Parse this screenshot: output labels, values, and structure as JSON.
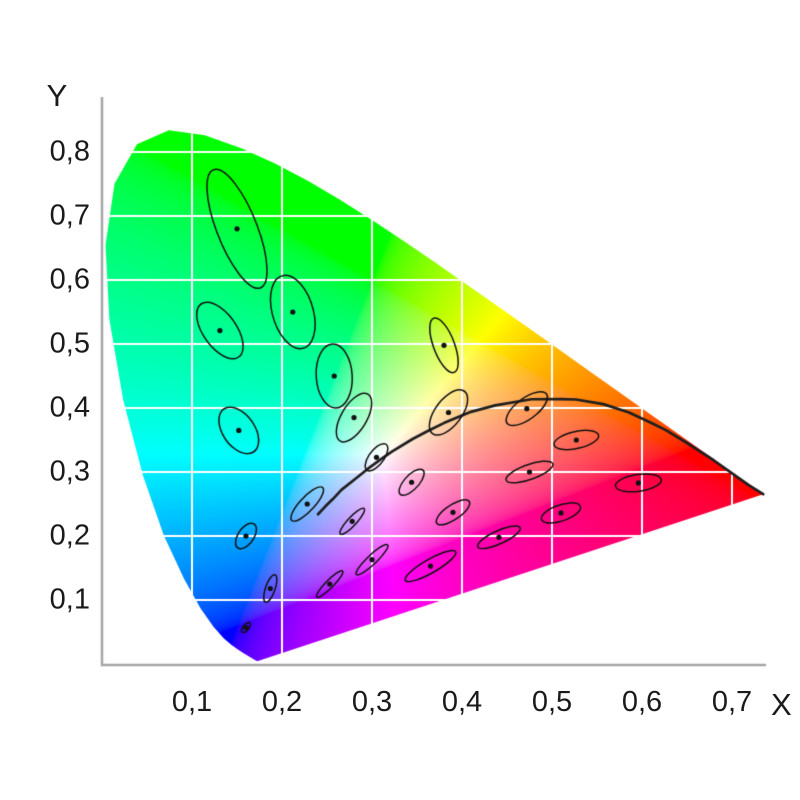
{
  "figure": {
    "background": "#ffffff"
  },
  "axes": {
    "x_title": "X",
    "y_title": "Y",
    "x_tick_labels": [
      "0,1",
      "0,2",
      "0,3",
      "0,4",
      "0,5",
      "0,6",
      "0,7"
    ],
    "x_tick_values": [
      0.1,
      0.2,
      0.3,
      0.4,
      0.5,
      0.6,
      0.7
    ],
    "y_tick_labels": [
      "0,1",
      "0,2",
      "0,3",
      "0,4",
      "0,5",
      "0,6",
      "0,7",
      "0,8"
    ],
    "y_tick_values": [
      0.1,
      0.2,
      0.3,
      0.4,
      0.5,
      0.6,
      0.7,
      0.8
    ],
    "axis_color": "#a6a6a6",
    "text_color": "#1a1a1a"
  },
  "chart_data": {
    "type": "scatter",
    "subtype": "cie-1931-chromaticity-diagram-with-macadam-ellipses",
    "title": "",
    "xlabel": "X",
    "ylabel": "Y",
    "xlim": [
      0,
      0.75
    ],
    "ylim": [
      0,
      0.85
    ],
    "x_ticks": [
      0.1,
      0.2,
      0.3,
      0.4,
      0.5,
      0.6,
      0.7
    ],
    "y_ticks": [
      0.1,
      0.2,
      0.3,
      0.4,
      0.5,
      0.6,
      0.7,
      0.8
    ],
    "grid": true,
    "grid_color": "#ffffff",
    "curve_color": "#1f1f1f",
    "ellipse_color": "#111111",
    "spectral_locus": [
      [
        0.1741,
        0.005
      ],
      [
        0.174,
        0.005
      ],
      [
        0.1738,
        0.0049
      ],
      [
        0.1733,
        0.0048
      ],
      [
        0.1726,
        0.0048
      ],
      [
        0.1714,
        0.0051
      ],
      [
        0.1689,
        0.0069
      ],
      [
        0.1644,
        0.0109
      ],
      [
        0.1611,
        0.0138
      ],
      [
        0.1566,
        0.0177
      ],
      [
        0.151,
        0.0227
      ],
      [
        0.144,
        0.0297
      ],
      [
        0.1355,
        0.0399
      ],
      [
        0.1241,
        0.0578
      ],
      [
        0.1096,
        0.0868
      ],
      [
        0.0913,
        0.1327
      ],
      [
        0.0687,
        0.2007
      ],
      [
        0.0454,
        0.295
      ],
      [
        0.0235,
        0.4127
      ],
      [
        0.0082,
        0.5384
      ],
      [
        0.0039,
        0.6548
      ],
      [
        0.0139,
        0.7502
      ],
      [
        0.0389,
        0.812
      ],
      [
        0.0743,
        0.8338
      ],
      [
        0.1142,
        0.8262
      ],
      [
        0.1547,
        0.8059
      ],
      [
        0.1929,
        0.7816
      ],
      [
        0.2296,
        0.7543
      ],
      [
        0.2658,
        0.7243
      ],
      [
        0.3016,
        0.6923
      ],
      [
        0.3373,
        0.6589
      ],
      [
        0.3731,
        0.6245
      ],
      [
        0.4087,
        0.5896
      ],
      [
        0.4441,
        0.5547
      ],
      [
        0.4788,
        0.5202
      ],
      [
        0.5125,
        0.4866
      ],
      [
        0.5448,
        0.4544
      ],
      [
        0.5752,
        0.4242
      ],
      [
        0.6029,
        0.3965
      ],
      [
        0.627,
        0.3725
      ],
      [
        0.6482,
        0.3514
      ],
      [
        0.6658,
        0.334
      ],
      [
        0.6801,
        0.3197
      ],
      [
        0.6915,
        0.3083
      ],
      [
        0.7006,
        0.2993
      ],
      [
        0.7079,
        0.292
      ],
      [
        0.714,
        0.2859
      ],
      [
        0.719,
        0.2809
      ],
      [
        0.723,
        0.277
      ],
      [
        0.726,
        0.274
      ],
      [
        0.73,
        0.27
      ],
      [
        0.7329,
        0.2671
      ],
      [
        0.7347,
        0.2653
      ]
    ],
    "planckian_locus": [
      [
        0.24,
        0.234
      ],
      [
        0.248,
        0.246
      ],
      [
        0.2565,
        0.2577
      ],
      [
        0.266,
        0.272
      ],
      [
        0.2806,
        0.2883
      ],
      [
        0.2952,
        0.3048
      ],
      [
        0.31,
        0.32
      ],
      [
        0.3221,
        0.3318
      ],
      [
        0.3451,
        0.3516
      ],
      [
        0.362,
        0.364
      ],
      [
        0.3804,
        0.3768
      ],
      [
        0.41,
        0.394
      ],
      [
        0.4369,
        0.4041
      ],
      [
        0.477,
        0.4137
      ],
      [
        0.51,
        0.414
      ],
      [
        0.5267,
        0.4133
      ],
      [
        0.557,
        0.406
      ],
      [
        0.5857,
        0.3931
      ],
      [
        0.61,
        0.377
      ],
      [
        0.627,
        0.365
      ],
      [
        0.655,
        0.341
      ],
      [
        0.68,
        0.318
      ],
      [
        0.704,
        0.294
      ],
      [
        0.719,
        0.279
      ],
      [
        0.7347,
        0.2653
      ]
    ],
    "macadam_ellipses": [
      {
        "x": 0.16,
        "y": 0.057,
        "a": 0.0085,
        "b": 0.0035,
        "theta_deg": 62.5
      },
      {
        "x": 0.187,
        "y": 0.118,
        "a": 0.022,
        "b": 0.0055,
        "theta_deg": 77
      },
      {
        "x": 0.253,
        "y": 0.125,
        "a": 0.025,
        "b": 0.005,
        "theta_deg": 55.5
      },
      {
        "x": 0.15,
        "y": 0.68,
        "a": 0.096,
        "b": 0.023,
        "theta_deg": 105
      },
      {
        "x": 0.131,
        "y": 0.521,
        "a": 0.047,
        "b": 0.02,
        "theta_deg": 112.5
      },
      {
        "x": 0.212,
        "y": 0.55,
        "a": 0.058,
        "b": 0.023,
        "theta_deg": 100
      },
      {
        "x": 0.258,
        "y": 0.45,
        "a": 0.05,
        "b": 0.02,
        "theta_deg": 92
      },
      {
        "x": 0.152,
        "y": 0.365,
        "a": 0.038,
        "b": 0.019,
        "theta_deg": 110
      },
      {
        "x": 0.28,
        "y": 0.385,
        "a": 0.04,
        "b": 0.015,
        "theta_deg": 70
      },
      {
        "x": 0.38,
        "y": 0.498,
        "a": 0.044,
        "b": 0.012,
        "theta_deg": 104
      },
      {
        "x": 0.16,
        "y": 0.2,
        "a": 0.021,
        "b": 0.0095,
        "theta_deg": 69
      },
      {
        "x": 0.228,
        "y": 0.25,
        "a": 0.031,
        "b": 0.009,
        "theta_deg": 58
      },
      {
        "x": 0.305,
        "y": 0.323,
        "a": 0.023,
        "b": 0.009,
        "theta_deg": 65.5
      },
      {
        "x": 0.385,
        "y": 0.393,
        "a": 0.038,
        "b": 0.016,
        "theta_deg": 66
      },
      {
        "x": 0.472,
        "y": 0.399,
        "a": 0.032,
        "b": 0.014,
        "theta_deg": 51
      },
      {
        "x": 0.527,
        "y": 0.35,
        "a": 0.026,
        "b": 0.013,
        "theta_deg": 20
      },
      {
        "x": 0.475,
        "y": 0.3,
        "a": 0.029,
        "b": 0.011,
        "theta_deg": 28.5
      },
      {
        "x": 0.51,
        "y": 0.236,
        "a": 0.024,
        "b": 0.012,
        "theta_deg": 29.5
      },
      {
        "x": 0.596,
        "y": 0.283,
        "a": 0.026,
        "b": 0.013,
        "theta_deg": 13
      },
      {
        "x": 0.344,
        "y": 0.284,
        "a": 0.023,
        "b": 0.009,
        "theta_deg": 60
      },
      {
        "x": 0.39,
        "y": 0.237,
        "a": 0.025,
        "b": 0.01,
        "theta_deg": 47
      },
      {
        "x": 0.441,
        "y": 0.198,
        "a": 0.028,
        "b": 0.0095,
        "theta_deg": 34.5
      },
      {
        "x": 0.278,
        "y": 0.223,
        "a": 0.024,
        "b": 0.0055,
        "theta_deg": 57.5
      },
      {
        "x": 0.3,
        "y": 0.163,
        "a": 0.029,
        "b": 0.006,
        "theta_deg": 54
      },
      {
        "x": 0.365,
        "y": 0.153,
        "a": 0.036,
        "b": 0.0095,
        "theta_deg": 40
      }
    ]
  }
}
